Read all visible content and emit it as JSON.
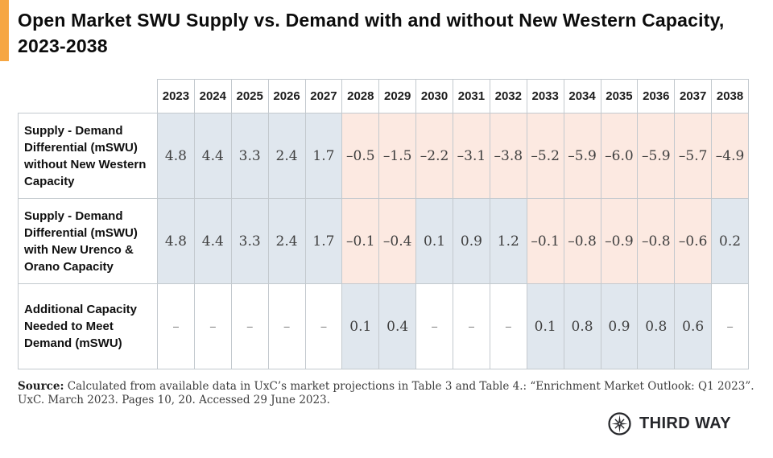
{
  "colors": {
    "accent": "#f6a642",
    "positive_bg": "#e0e7ee",
    "negative_bg": "#fce9e1",
    "table_border": "#c3c9ce"
  },
  "chart_data": {
    "type": "table",
    "title": "Open Market SWU Supply vs. Demand with and without New Western Capacity, 2023-2038",
    "columns": [
      "2023",
      "2024",
      "2025",
      "2026",
      "2027",
      "2028",
      "2029",
      "2030",
      "2031",
      "2032",
      "2033",
      "2034",
      "2035",
      "2036",
      "2037",
      "2038"
    ],
    "rows": [
      {
        "label": "Supply - Demand Differential (mSWU) without New Western Capacity",
        "values": [
          "4.8",
          "4.4",
          "3.3",
          "2.4",
          "1.7",
          "–0.5",
          "–1.5",
          "–2.2",
          "–3.1",
          "–3.8",
          "–5.2",
          "–5.9",
          "–6.0",
          "–5.9",
          "–5.7",
          "–4.9"
        ],
        "values_numeric": [
          4.8,
          4.4,
          3.3,
          2.4,
          1.7,
          -0.5,
          -1.5,
          -2.2,
          -3.1,
          -3.8,
          -5.2,
          -5.9,
          -6.0,
          -5.9,
          -5.7,
          -4.9
        ]
      },
      {
        "label": "Supply - Demand Differential (mSWU) with New Urenco & Orano Capacity",
        "values": [
          "4.8",
          "4.4",
          "3.3",
          "2.4",
          "1.7",
          "–0.1",
          "–0.4",
          "0.1",
          "0.9",
          "1.2",
          "–0.1",
          "–0.8",
          "–0.9",
          "–0.8",
          "–0.6",
          "0.2"
        ],
        "values_numeric": [
          4.8,
          4.4,
          3.3,
          2.4,
          1.7,
          -0.1,
          -0.4,
          0.1,
          0.9,
          1.2,
          -0.1,
          -0.8,
          -0.9,
          -0.8,
          -0.6,
          0.2
        ]
      },
      {
        "label": "Additional Capacity Needed to Meet Demand (mSWU)",
        "values": [
          "–",
          "–",
          "–",
          "–",
          "–",
          "0.1",
          "0.4",
          "–",
          "–",
          "–",
          "0.1",
          "0.8",
          "0.9",
          "0.8",
          "0.6",
          "–"
        ],
        "values_numeric": [
          null,
          null,
          null,
          null,
          null,
          0.1,
          0.4,
          null,
          null,
          null,
          0.1,
          0.8,
          0.9,
          0.8,
          0.6,
          null
        ]
      }
    ],
    "legend": {
      "positive_cells": "light blue",
      "negative_cells": "light pink",
      "no_value": "white dash"
    }
  },
  "source": {
    "label": "Source:",
    "text": "Calculated from available data in UxC’s market projections in Table 3 and Table 4.: “Enrichment Market Outlook: Q1 2023”. UxC. March 2023. Pages 10, 20. Accessed 29 June 2023."
  },
  "logo": {
    "text": "THIRD WAY",
    "icon": "compass-star-icon"
  }
}
